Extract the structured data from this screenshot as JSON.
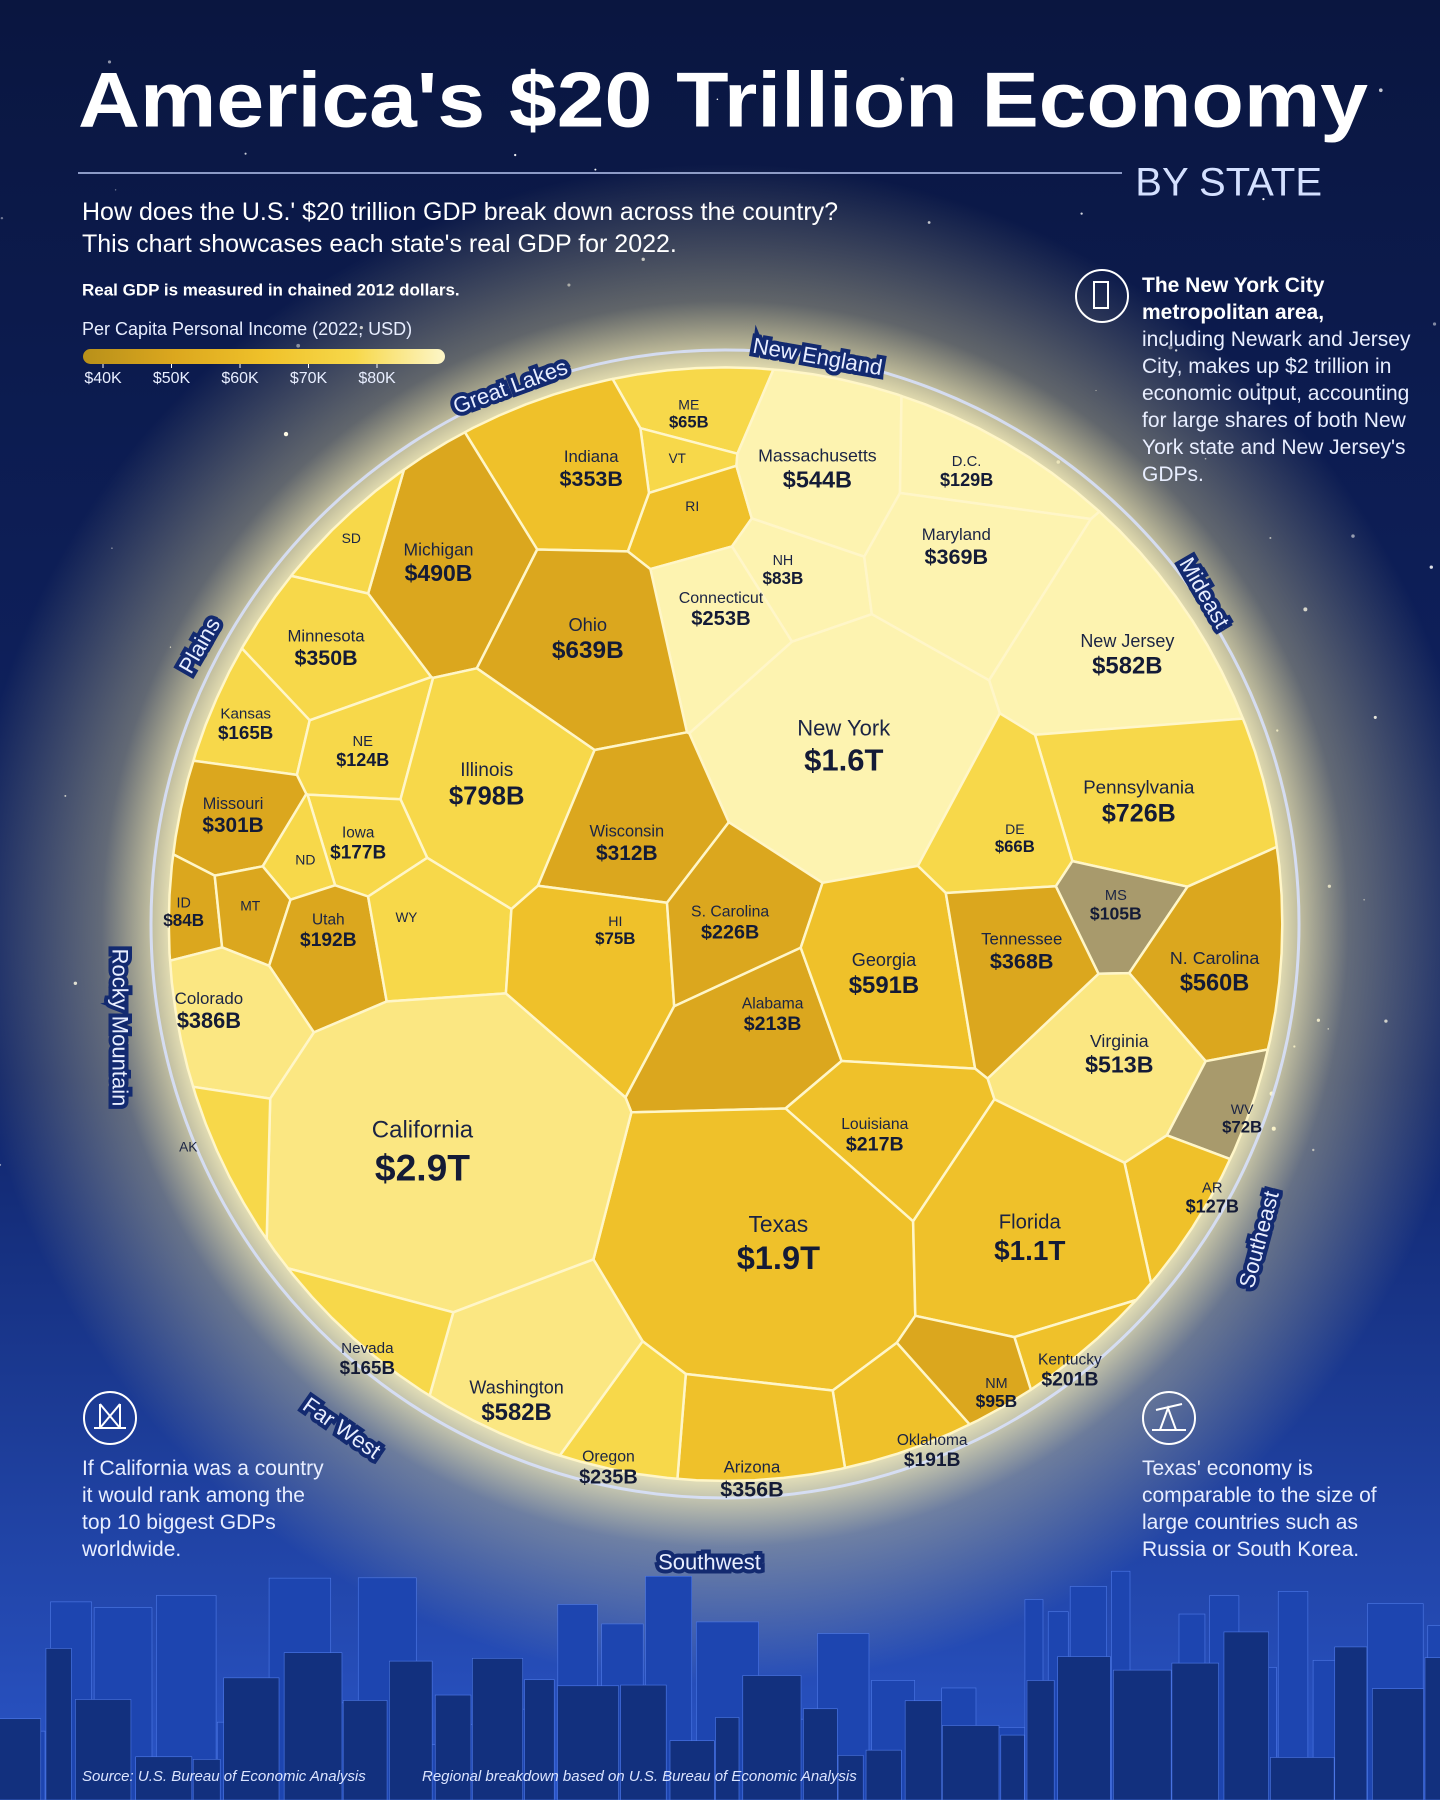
{
  "title": "America's $20 Trillion Economy",
  "subtitle": "BY STATE",
  "description": [
    "How does the U.S.' $20 trillion GDP break down across the country?",
    "This chart showcases each state's real GDP for 2022."
  ],
  "note": "Real GDP is measured in chained 2012 dollars.",
  "chart_data": {
    "type": "voronoi-treemap",
    "categories": [
      "ME",
      "VT",
      "RI",
      "Massachusetts",
      "D.C.",
      "NH",
      "Connecticut",
      "Maryland",
      "New Jersey",
      "New York",
      "Pennsylvania",
      "DE",
      "Indiana",
      "Michigan",
      "SD",
      "Ohio",
      "Minnesota",
      "Kansas",
      "NE",
      "Illinois",
      "Missouri",
      "Iowa",
      "ND",
      "Wisconsin",
      "ID",
      "MT",
      "Utah",
      "WY",
      "Colorado",
      "HI",
      "S. Carolina",
      "Alabama",
      "Georgia",
      "Tennessee",
      "MS",
      "N. Carolina",
      "Virginia",
      "WV",
      "AR",
      "Louisiana",
      "Texas",
      "Florida",
      "California",
      "AK",
      "Kentucky",
      "NM",
      "Oklahoma",
      "Arizona",
      "Oregon",
      "Washington",
      "Nevada"
    ],
    "values": [
      65,
      36,
      60,
      544,
      129,
      83,
      253,
      369,
      582,
      1600,
      726,
      66,
      353,
      490,
      59,
      639,
      350,
      165,
      124,
      798,
      301,
      177,
      63,
      312,
      84,
      55,
      192,
      40,
      386,
      75,
      226,
      213,
      591,
      368,
      105,
      560,
      513,
      72,
      127,
      217,
      1900,
      1100,
      2900,
      53,
      201,
      95,
      191,
      356,
      235,
      582,
      165
    ],
    "value_labels": [
      "$65B",
      null,
      null,
      "$544B",
      "$129B",
      "$83B",
      "$253B",
      "$369B",
      "$582B",
      "$1.6T",
      "$726B",
      "$66B",
      "$353B",
      "$490B",
      null,
      "$639B",
      "$350B",
      "$165B",
      "$124B",
      "$798B",
      "$301B",
      "$177B",
      null,
      "$312B",
      "$84B",
      null,
      "$192B",
      null,
      "$386B",
      "$75B",
      "$226B",
      "$213B",
      "$591B",
      "$368B",
      "$105B",
      "$560B",
      "$513B",
      "$72B",
      "$127B",
      "$217B",
      "$1.9T",
      "$1.1T",
      "$2.9T",
      null,
      "$201B",
      "$95B",
      "$191B",
      "$356B",
      "$235B",
      "$582B",
      "$165B"
    ],
    "colors": [
      "#f7d84a",
      "#f7d84a",
      "#efc12a",
      "#fdf3b0",
      "#fdf3b0",
      "#fdf3b0",
      "#fdf3b0",
      "#fdf3b0",
      "#fdf3b0",
      "#fdf3b0",
      "#f7d84a",
      "#f7d84a",
      "#efc12a",
      "#dba71e",
      "#f7d84a",
      "#dba71e",
      "#f7d84a",
      "#f7d84a",
      "#f7d84a",
      "#f7d84a",
      "#dba71e",
      "#f7d84a",
      "#f7d84a",
      "#dba71e",
      "#dba71e",
      "#dba71e",
      "#dba71e",
      "#f7d84a",
      "#fbe782",
      "#efc12a",
      "#dba71e",
      "#dba71e",
      "#efc12a",
      "#dba71e",
      "#a89a6c",
      "#dba71e",
      "#fbe782",
      "#a89a6c",
      "#efc12a",
      "#efc12a",
      "#efc12a",
      "#efc12a",
      "#fbe782",
      "#f7d84a",
      "#efc12a",
      "#dba71e",
      "#efc12a",
      "#efc12a",
      "#f7d84a",
      "#fbe782",
      "#f7d84a"
    ],
    "regions": [
      "New England",
      "Mideast",
      "Southeast",
      "Southwest",
      "Far West",
      "Rocky Mountain",
      "Plains",
      "Great Lakes"
    ],
    "legend": {
      "title": "Per Capita Personal Income (2022, USD)",
      "colors": [
        "#b8901a",
        "#dba71e",
        "#efc12a",
        "#f7d84a",
        "#fdf6c8"
      ],
      "ticks": [
        {
          "value": 40000,
          "label": "$40K"
        },
        {
          "value": 50000,
          "label": "$50K"
        },
        {
          "value": 60000,
          "label": "$60K"
        },
        {
          "value": 70000,
          "label": "$70K"
        },
        {
          "value": 80000,
          "label": "$80K"
        }
      ]
    }
  },
  "callouts": [
    {
      "title": "The New York City metropolitan area,",
      "text": "including Newark and Jersey City, makes up $2 trillion in economic output, accounting for large shares of both New York state and New Jersey's GDPs."
    },
    {
      "text": "If California was a country it would rank among the top 10 biggest GDPs worldwide."
    },
    {
      "text": "Texas' economy is comparable to the size of large countries such as Russia or South Korea."
    }
  ],
  "sources": [
    "Source: U.S. Bureau of Economic Analysis",
    "Regional breakdown based on U.S. Bureau of Economic Analysis"
  ]
}
